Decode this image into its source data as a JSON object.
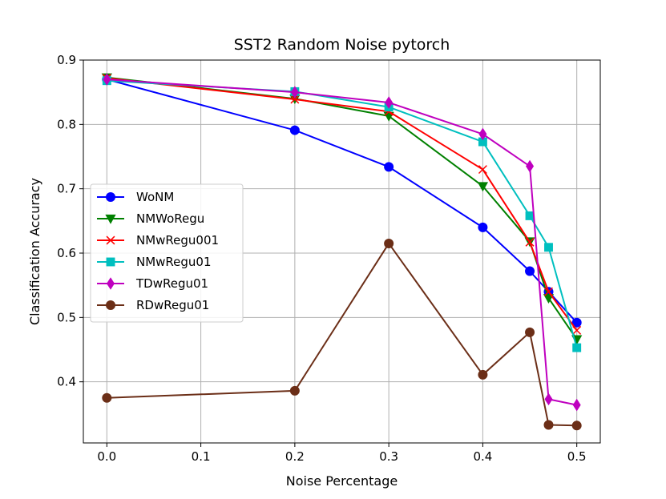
{
  "chart_data": {
    "type": "line",
    "title": "SST2 Random Noise pytorch",
    "xlabel": "Noise Percentage",
    "ylabel": "Classification Accuracy",
    "xlim": [
      -0.025,
      0.525
    ],
    "ylim": [
      0.305,
      0.9
    ],
    "xticks": [
      0.0,
      0.1,
      0.2,
      0.3,
      0.4,
      0.5
    ],
    "xtick_labels": [
      "0.0",
      "0.1",
      "0.2",
      "0.3",
      "0.4",
      "0.5"
    ],
    "yticks": [
      0.4,
      0.5,
      0.6,
      0.7,
      0.8,
      0.9
    ],
    "ytick_labels": [
      "0.4",
      "0.5",
      "0.6",
      "0.7",
      "0.8",
      "0.9"
    ],
    "grid": true,
    "legend_position": "center-left",
    "x": [
      0.0,
      0.2,
      0.3,
      0.4,
      0.45,
      0.47,
      0.5
    ],
    "series": [
      {
        "name": "WoNM",
        "color": "#0000ff",
        "marker": "circle",
        "values": [
          0.87,
          0.791,
          0.734,
          0.64,
          0.572,
          0.54,
          0.492
        ]
      },
      {
        "name": "NMWoRegu",
        "color": "#008000",
        "marker": "triangle-down",
        "values": [
          0.873,
          0.84,
          0.813,
          0.704,
          0.618,
          0.53,
          0.466
        ]
      },
      {
        "name": "NMwRegu001",
        "color": "#ff0000",
        "marker": "x",
        "values": [
          0.872,
          0.839,
          0.82,
          0.73,
          0.617,
          0.54,
          0.48
        ]
      },
      {
        "name": "NMwRegu01",
        "color": "#00bfbf",
        "marker": "square",
        "values": [
          0.868,
          0.851,
          0.827,
          0.773,
          0.658,
          0.609,
          0.453
        ]
      },
      {
        "name": "TDwRegu01",
        "color": "#bf00bf",
        "marker": "diamond",
        "values": [
          0.87,
          0.85,
          0.834,
          0.785,
          0.735,
          0.373,
          0.364
        ]
      },
      {
        "name": "RDwRegu01",
        "color": "#6b2e17",
        "marker": "circle",
        "values": [
          0.375,
          0.386,
          0.615,
          0.411,
          0.477,
          0.333,
          0.332
        ]
      }
    ]
  }
}
